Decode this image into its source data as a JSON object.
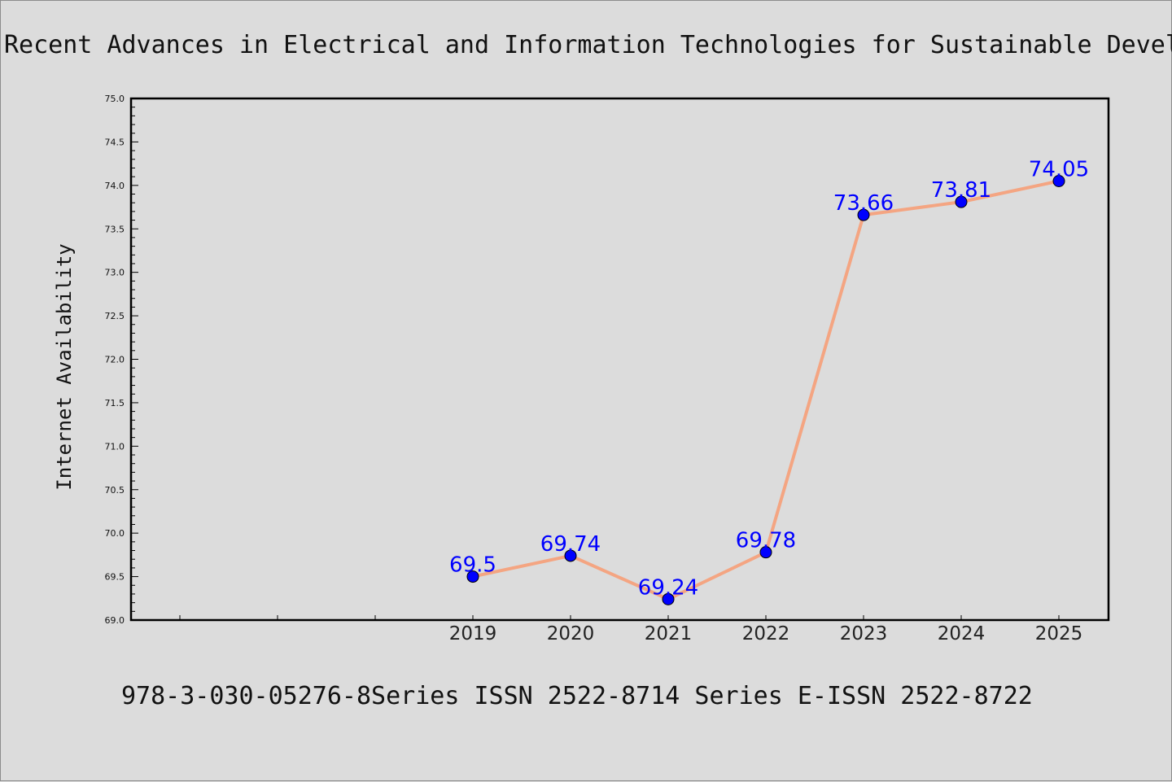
{
  "title": "Recent Advances in Electrical and Information Technologies for Sustainable Devel",
  "footer": "978-3-030-05276-8Series ISSN 2522-8714 Series E-ISSN 2522-8722",
  "colors": {
    "background": "#dcdcdc",
    "line": "#f4a582",
    "marker": "#0000ff",
    "data_label": "#0000ff",
    "axes": "#000000"
  },
  "chart_data": {
    "type": "line",
    "ylabel": "Internet Availability",
    "xlabel": "",
    "ylim": [
      69.0,
      75.0
    ],
    "yticks": [
      "69.0",
      "69.5",
      "70.0",
      "70.5",
      "71.0",
      "71.5",
      "72.0",
      "72.5",
      "73.0",
      "73.5",
      "74.0",
      "74.5",
      "75.0"
    ],
    "x": [
      "2019",
      "2020",
      "2021",
      "2022",
      "2023",
      "2024",
      "2025"
    ],
    "values": [
      69.5,
      69.74,
      69.24,
      69.78,
      73.66,
      73.81,
      74.05
    ],
    "data_labels": [
      "69.5",
      "69.74",
      "69.24",
      "69.78",
      "73.66",
      "73.81",
      "74.05"
    ],
    "grid": false,
    "legend": "none"
  }
}
